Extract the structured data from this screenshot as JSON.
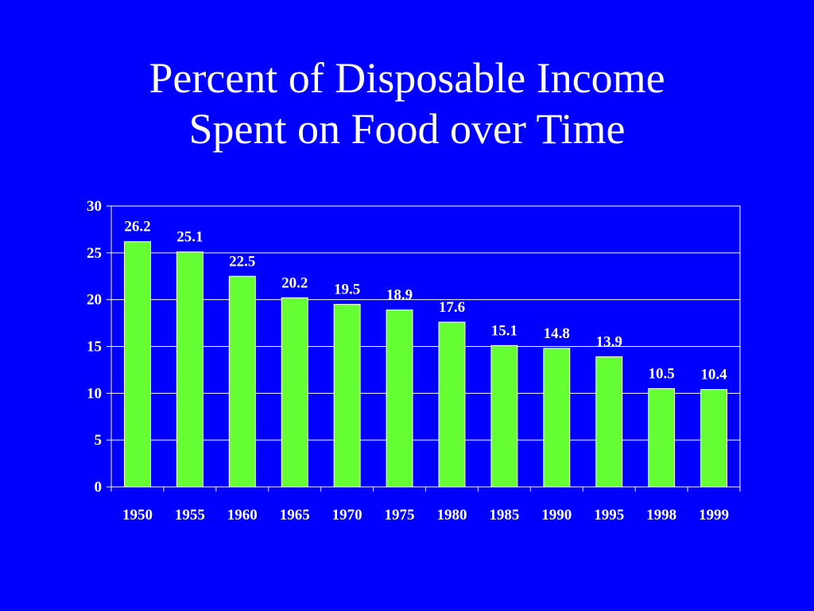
{
  "slide": {
    "title_line1": "Percent of Disposable Income",
    "title_line2": "Spent on Food over Time"
  },
  "colors": {
    "background": "#0000FF",
    "bar": "#66FF33",
    "text": "#FFFFFF",
    "gridline": "#FFFFFF"
  },
  "chart_data": {
    "type": "bar",
    "title": "Percent of Disposable Income Spent on Food over Time",
    "xlabel": "",
    "ylabel": "",
    "categories": [
      "1950",
      "1955",
      "1960",
      "1965",
      "1970",
      "1975",
      "1980",
      "1985",
      "1990",
      "1995",
      "1998",
      "1999"
    ],
    "values": [
      26.2,
      25.1,
      22.5,
      20.2,
      19.5,
      18.9,
      17.6,
      15.1,
      14.8,
      13.9,
      10.5,
      10.4
    ],
    "data_labels": [
      "26.2",
      "25.1",
      "22.5",
      "20.2",
      "19.5",
      "18.9",
      "17.6",
      "15.1",
      "14.8",
      "13.9",
      "10.5",
      "10.4"
    ],
    "ylim": [
      0,
      30
    ],
    "yticks": [
      0,
      5,
      10,
      15,
      20,
      25,
      30
    ],
    "ytick_labels": [
      "0",
      "5",
      "10",
      "15",
      "20",
      "25",
      "30"
    ],
    "grid": true,
    "legend": "none"
  }
}
